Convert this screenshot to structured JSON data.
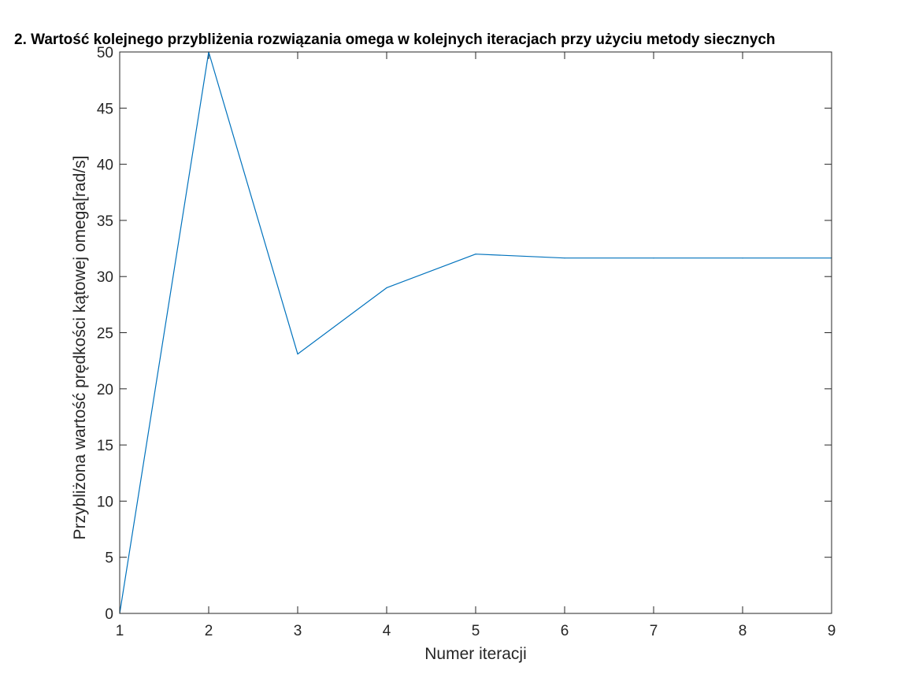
{
  "chart_data": {
    "type": "line",
    "title": "2.  Wartość kolejnego przybliżenia rozwiązania omega w kolejnych iteracjach przy użyciu metody siecznych",
    "xlabel": "Numer iteracji",
    "ylabel": "Przybliżona wartość prędkości kątowej omega[rad/s]",
    "xlim": [
      1,
      9
    ],
    "ylim": [
      0,
      50
    ],
    "xticks": [
      1,
      2,
      3,
      4,
      5,
      6,
      7,
      8,
      9
    ],
    "yticks": [
      0,
      5,
      10,
      15,
      20,
      25,
      30,
      35,
      40,
      45,
      50
    ],
    "grid": false,
    "series": [
      {
        "color": "#0072BD",
        "x": [
          1,
          2,
          3,
          4,
          5,
          6,
          7,
          8,
          9
        ],
        "y": [
          0,
          50,
          23.1,
          29.0,
          32.0,
          31.65,
          31.65,
          31.65,
          31.65
        ]
      }
    ]
  }
}
